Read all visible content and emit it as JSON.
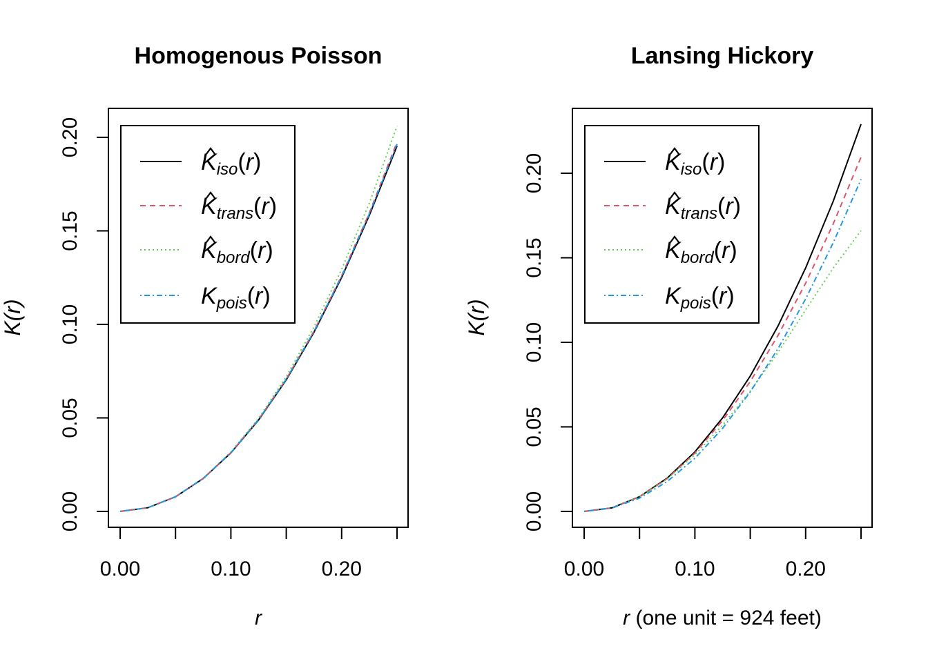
{
  "chart_data": [
    {
      "type": "line",
      "title": "Homogenous Poisson",
      "xlabel": "r",
      "ylabel": "K(r)",
      "xlim": [
        0,
        0.25
      ],
      "ylim": [
        0,
        0.2
      ],
      "xticks": [
        "0.00",
        "0.10",
        "0.20"
      ],
      "xticks_minor": [
        0.05,
        0.15,
        0.25
      ],
      "yticks": [
        "0.00",
        "0.05",
        "0.10",
        "0.15",
        "0.20"
      ],
      "legend_position": "top-left",
      "x": [
        0,
        0.025,
        0.05,
        0.075,
        0.1,
        0.125,
        0.15,
        0.175,
        0.2,
        0.225,
        0.25
      ],
      "series": [
        {
          "name": "K̂iso(r)",
          "main": "K",
          "hat": true,
          "sub": "iso",
          "color": "#000000",
          "dash": "",
          "values": [
            0,
            0.00195,
            0.00782,
            0.0176,
            0.03128,
            0.04885,
            0.07035,
            0.09575,
            0.12505,
            0.1583,
            0.1954
          ]
        },
        {
          "name": "K̂trans(r)",
          "main": "K",
          "hat": true,
          "sub": "trans",
          "color": "#DF536B",
          "dash": "8,6",
          "values": [
            0,
            0.00196,
            0.00785,
            0.01767,
            0.03145,
            0.04915,
            0.0708,
            0.0964,
            0.126,
            0.1596,
            0.1975
          ]
        },
        {
          "name": "K̂bord(r)",
          "main": "K",
          "hat": true,
          "sub": "bord",
          "color": "#61D04F",
          "dash": "2,4",
          "values": [
            0,
            0.00196,
            0.00787,
            0.01775,
            0.0317,
            0.0498,
            0.0721,
            0.0986,
            0.1295,
            0.1648,
            0.206
          ]
        },
        {
          "name": "Kpois(r)",
          "main": "K",
          "hat": false,
          "sub": "pois",
          "color": "#2297E6",
          "dash": "2,4,8,4",
          "values": [
            0,
            0.00196,
            0.00785,
            0.01767,
            0.03142,
            0.04909,
            0.07069,
            0.09621,
            0.12566,
            0.15904,
            0.19635
          ]
        }
      ]
    },
    {
      "type": "line",
      "title": "Lansing Hickory",
      "xlabel_var": "r",
      "xlabel": " (one unit = 924 feet)",
      "ylabel": "K(r)",
      "xlim": [
        0,
        0.25
      ],
      "ylim": [
        0,
        0.23
      ],
      "xticks": [
        "0.00",
        "0.10",
        "0.20"
      ],
      "xticks_minor": [
        0.05,
        0.15,
        0.25
      ],
      "yticks": [
        "0.00",
        "0.05",
        "0.10",
        "0.15",
        "0.20"
      ],
      "legend_position": "top-left",
      "x": [
        0,
        0.025,
        0.05,
        0.075,
        0.1,
        0.125,
        0.15,
        0.175,
        0.2,
        0.225,
        0.25
      ],
      "series": [
        {
          "name": "K̂iso(r)",
          "main": "K",
          "hat": true,
          "sub": "iso",
          "color": "#000000",
          "dash": "",
          "values": [
            0,
            0.0021,
            0.0087,
            0.0197,
            0.0352,
            0.0553,
            0.0801,
            0.1096,
            0.144,
            0.1836,
            0.229
          ]
        },
        {
          "name": "K̂trans(r)",
          "main": "K",
          "hat": true,
          "sub": "trans",
          "color": "#DF536B",
          "dash": "8,6",
          "values": [
            0,
            0.0021,
            0.0086,
            0.0194,
            0.0345,
            0.0537,
            0.0768,
            0.104,
            0.135,
            0.1702,
            0.2095
          ]
        },
        {
          "name": "K̂bord(r)",
          "main": "K",
          "hat": true,
          "sub": "bord",
          "color": "#61D04F",
          "dash": "2,4",
          "values": [
            0,
            0.0021,
            0.0086,
            0.0192,
            0.0335,
            0.051,
            0.0712,
            0.094,
            0.1192,
            0.144,
            0.166
          ]
        },
        {
          "name": "Kpois(r)",
          "main": "K",
          "hat": false,
          "sub": "pois",
          "color": "#2297E6",
          "dash": "2,4,8,4",
          "values": [
            0,
            0.00196,
            0.00785,
            0.01767,
            0.03142,
            0.04909,
            0.07069,
            0.09621,
            0.12566,
            0.15904,
            0.19635
          ]
        }
      ]
    }
  ]
}
